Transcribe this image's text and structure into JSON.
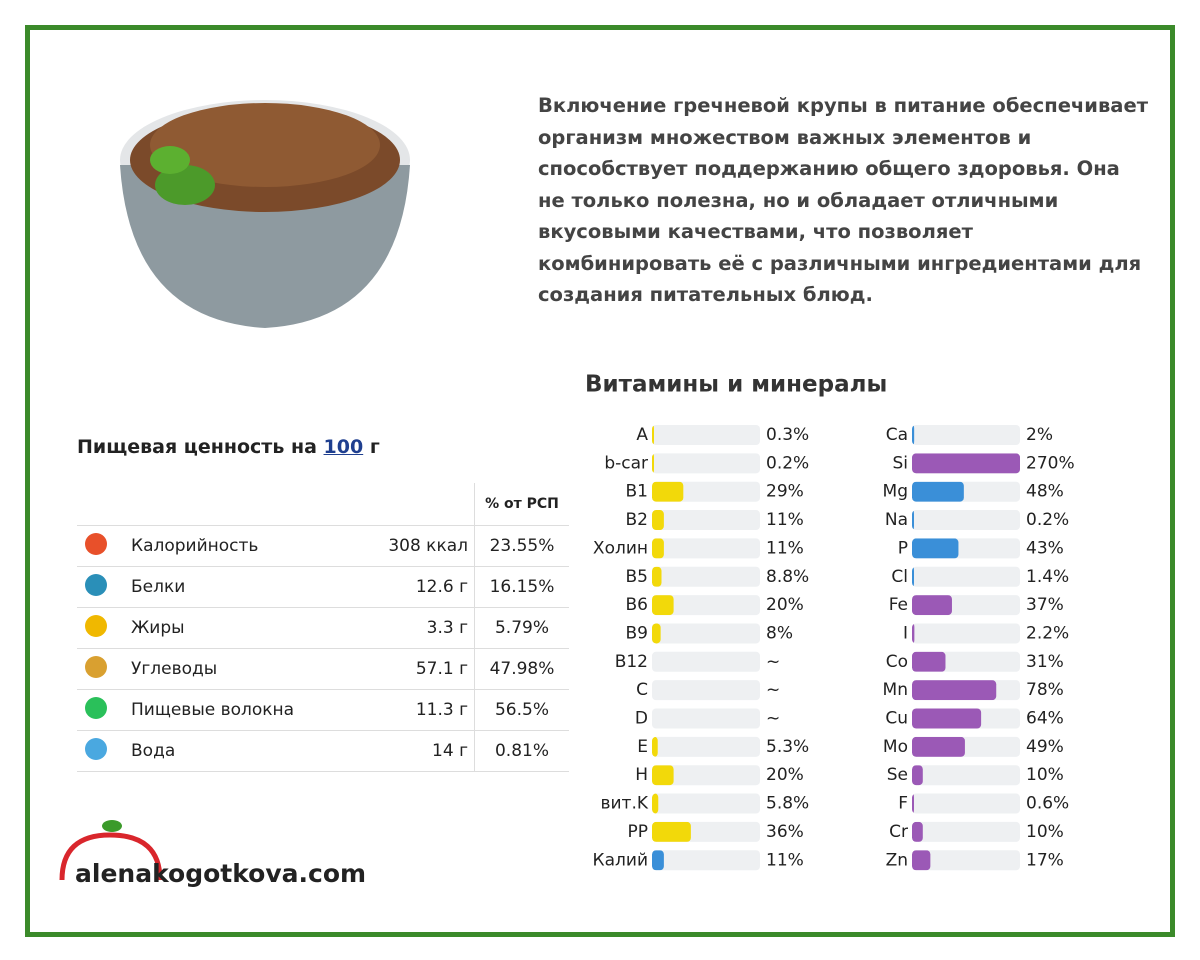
{
  "intro": "Включение гречневой крупы в питание обеспечивает организм множеством важных элементов и способствует поддержанию общего здоровья. Она не только полезна, но и обладает отличными вкусовыми качествами, что позволяет комбинировать её с различными ингредиентами для создания питательных блюд.",
  "nutrition": {
    "title_prefix": "Пищевая ценность на",
    "title_amount": "100",
    "title_suffix": "г",
    "header": "% от РСП",
    "rows": [
      [
        "Калорийность",
        "308 ккал",
        "23.55%"
      ],
      [
        "Белки",
        "12.6 г",
        "16.15%"
      ],
      [
        "Жиры",
        "3.3 г",
        "5.79%"
      ],
      [
        "Углеводы",
        "57.1 г",
        "47.98%"
      ],
      [
        "Пищевые волокна",
        "11.3 г",
        "56.5%"
      ],
      [
        "Вода",
        "14 г",
        "0.81%"
      ]
    ]
  },
  "chart_data": [
    {
      "type": "bar",
      "title": "Витамины и минералы",
      "xlim": [
        0,
        100
      ],
      "categories": [
        "A",
        "b-car",
        "B1",
        "B2",
        "Холин",
        "B5",
        "B6",
        "B9",
        "B12",
        "C",
        "D",
        "E",
        "H",
        "вит.K",
        "PP",
        "Калий"
      ],
      "values": [
        0.3,
        0.2,
        29,
        11,
        11,
        8.8,
        20,
        8,
        null,
        null,
        null,
        5.3,
        20,
        5.8,
        36,
        11
      ],
      "value_labels": [
        "0.3%",
        "0.2%",
        "29%",
        "11%",
        "11%",
        "8.8%",
        "20%",
        "8%",
        "~",
        "~",
        "~",
        "5.3%",
        "20%",
        "5.8%",
        "36%",
        "11%"
      ],
      "colors": [
        "#f2d90a",
        "#f2d90a",
        "#f2d90a",
        "#f2d90a",
        "#f2d90a",
        "#f2d90a",
        "#f2d90a",
        "#f2d90a",
        "#f2d90a",
        "#f2d90a",
        "#f2d90a",
        "#f2d90a",
        "#f2d90a",
        "#f2d90a",
        "#f2d90a",
        "#3a8fd8"
      ]
    },
    {
      "type": "bar",
      "xlim": [
        0,
        100
      ],
      "categories": [
        "Ca",
        "Si",
        "Mg",
        "Na",
        "P",
        "Cl",
        "Fe",
        "I",
        "Co",
        "Mn",
        "Cu",
        "Mo",
        "Se",
        "F",
        "Cr",
        "Zn"
      ],
      "values": [
        2,
        270,
        48,
        0.2,
        43,
        1.4,
        37,
        2.2,
        31,
        78,
        64,
        49,
        10,
        0.6,
        10,
        17
      ],
      "value_labels": [
        "2%",
        "270%",
        "48%",
        "0.2%",
        "43%",
        "1.4%",
        "37%",
        "2.2%",
        "31%",
        "78%",
        "64%",
        "49%",
        "10%",
        "0.6%",
        "10%",
        "17%"
      ],
      "colors": [
        "#3a8fd8",
        "#9b59b6",
        "#3a8fd8",
        "#3a8fd8",
        "#3a8fd8",
        "#3a8fd8",
        "#9b59b6",
        "#9b59b6",
        "#9b59b6",
        "#9b59b6",
        "#9b59b6",
        "#9b59b6",
        "#9b59b6",
        "#9b59b6",
        "#9b59b6",
        "#9b59b6"
      ]
    }
  ],
  "logo": "alenakogotkova.com"
}
